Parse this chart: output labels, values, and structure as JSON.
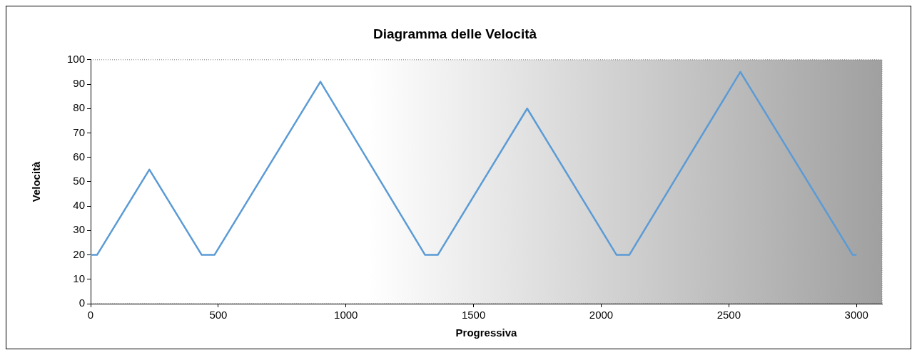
{
  "chart_data": {
    "type": "line",
    "title": "Diagramma delle Velocità",
    "xlabel": "Progressiva",
    "ylabel": "Velocità",
    "x": [
      0,
      25,
      230,
      435,
      485,
      900,
      1310,
      1360,
      1710,
      2060,
      2110,
      2545,
      2985,
      3000
    ],
    "series": [
      {
        "color": "#5b9bd5",
        "values": [
          20,
          20,
          55,
          20,
          20,
          91,
          20,
          20,
          80,
          20,
          20,
          95,
          20,
          20
        ]
      }
    ],
    "xlim": [
      0,
      3100
    ],
    "xticks": [
      0,
      500,
      1000,
      1500,
      2000,
      2500,
      3000
    ],
    "ylim": [
      0,
      100
    ],
    "yticks": [
      0,
      10,
      20,
      30,
      40,
      50,
      60,
      70,
      80,
      90,
      100
    ],
    "grid": false,
    "legend": false,
    "marker": "none",
    "line_style": "solid"
  }
}
